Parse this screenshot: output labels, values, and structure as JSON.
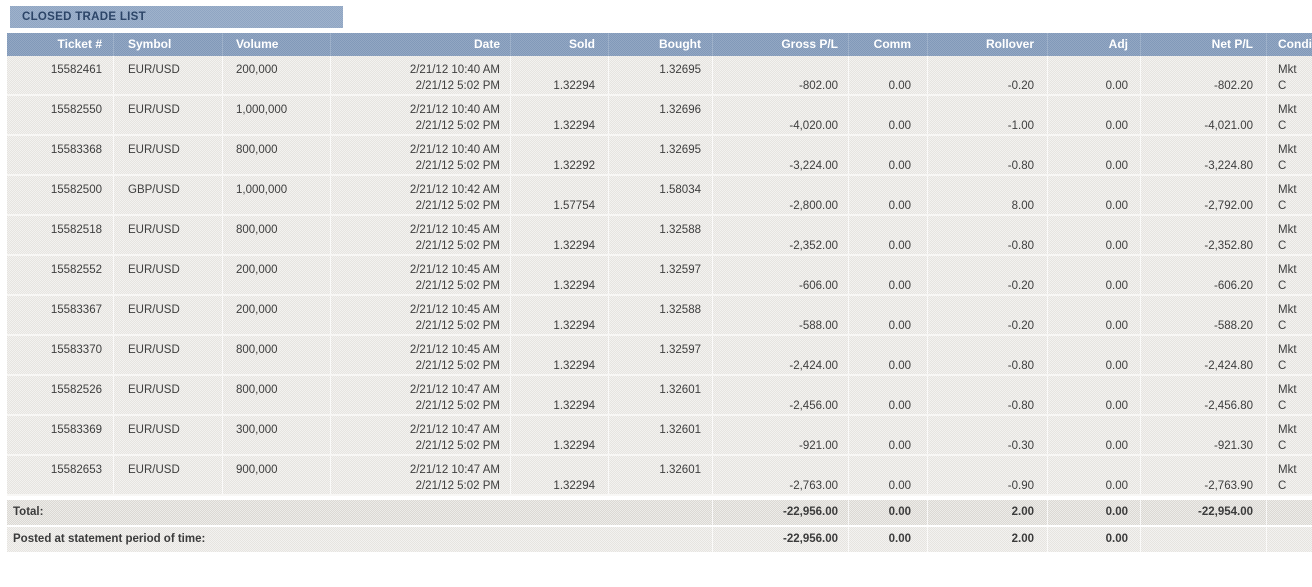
{
  "panel": {
    "title": "CLOSED TRADE LIST"
  },
  "table": {
    "columns": {
      "ticket": "Ticket #",
      "symbol": "Symbol",
      "volume": "Volume",
      "date": "Date",
      "sold": "Sold",
      "bought": "Bought",
      "gross": "Gross P/L",
      "comm": "Comm",
      "rollover": "Rollover",
      "adj": "Adj",
      "net": "Net P/L",
      "cond": "Condi"
    },
    "rows": [
      {
        "ticket": "15582461",
        "symbol": "EUR/USD",
        "volume": "200,000",
        "date_open": "2/21/12 10:40 AM",
        "date_close": "2/21/12 5:02 PM",
        "sold": "1.32294",
        "bought": "1.32695",
        "gross": "-802.00",
        "comm": "0.00",
        "rollover": "-0.20",
        "adj": "0.00",
        "net": "-802.20",
        "cond_open": "Mkt",
        "cond_close": "C"
      },
      {
        "ticket": "15582550",
        "symbol": "EUR/USD",
        "volume": "1,000,000",
        "date_open": "2/21/12 10:40 AM",
        "date_close": "2/21/12 5:02 PM",
        "sold": "1.32294",
        "bought": "1.32696",
        "gross": "-4,020.00",
        "comm": "0.00",
        "rollover": "-1.00",
        "adj": "0.00",
        "net": "-4,021.00",
        "cond_open": "Mkt",
        "cond_close": "C"
      },
      {
        "ticket": "15583368",
        "symbol": "EUR/USD",
        "volume": "800,000",
        "date_open": "2/21/12 10:40 AM",
        "date_close": "2/21/12 5:02 PM",
        "sold": "1.32292",
        "bought": "1.32695",
        "gross": "-3,224.00",
        "comm": "0.00",
        "rollover": "-0.80",
        "adj": "0.00",
        "net": "-3,224.80",
        "cond_open": "Mkt",
        "cond_close": "C"
      },
      {
        "ticket": "15582500",
        "symbol": "GBP/USD",
        "volume": "1,000,000",
        "date_open": "2/21/12 10:42 AM",
        "date_close": "2/21/12 5:02 PM",
        "sold": "1.57754",
        "bought": "1.58034",
        "gross": "-2,800.00",
        "comm": "0.00",
        "rollover": "8.00",
        "adj": "0.00",
        "net": "-2,792.00",
        "cond_open": "Mkt",
        "cond_close": "C"
      },
      {
        "ticket": "15582518",
        "symbol": "EUR/USD",
        "volume": "800,000",
        "date_open": "2/21/12 10:45 AM",
        "date_close": "2/21/12 5:02 PM",
        "sold": "1.32294",
        "bought": "1.32588",
        "gross": "-2,352.00",
        "comm": "0.00",
        "rollover": "-0.80",
        "adj": "0.00",
        "net": "-2,352.80",
        "cond_open": "Mkt",
        "cond_close": "C"
      },
      {
        "ticket": "15582552",
        "symbol": "EUR/USD",
        "volume": "200,000",
        "date_open": "2/21/12 10:45 AM",
        "date_close": "2/21/12 5:02 PM",
        "sold": "1.32294",
        "bought": "1.32597",
        "gross": "-606.00",
        "comm": "0.00",
        "rollover": "-0.20",
        "adj": "0.00",
        "net": "-606.20",
        "cond_open": "Mkt",
        "cond_close": "C"
      },
      {
        "ticket": "15583367",
        "symbol": "EUR/USD",
        "volume": "200,000",
        "date_open": "2/21/12 10:45 AM",
        "date_close": "2/21/12 5:02 PM",
        "sold": "1.32294",
        "bought": "1.32588",
        "gross": "-588.00",
        "comm": "0.00",
        "rollover": "-0.20",
        "adj": "0.00",
        "net": "-588.20",
        "cond_open": "Mkt",
        "cond_close": "C"
      },
      {
        "ticket": "15583370",
        "symbol": "EUR/USD",
        "volume": "800,000",
        "date_open": "2/21/12 10:45 AM",
        "date_close": "2/21/12 5:02 PM",
        "sold": "1.32294",
        "bought": "1.32597",
        "gross": "-2,424.00",
        "comm": "0.00",
        "rollover": "-0.80",
        "adj": "0.00",
        "net": "-2,424.80",
        "cond_open": "Mkt",
        "cond_close": "C"
      },
      {
        "ticket": "15582526",
        "symbol": "EUR/USD",
        "volume": "800,000",
        "date_open": "2/21/12 10:47 AM",
        "date_close": "2/21/12 5:02 PM",
        "sold": "1.32294",
        "bought": "1.32601",
        "gross": "-2,456.00",
        "comm": "0.00",
        "rollover": "-0.80",
        "adj": "0.00",
        "net": "-2,456.80",
        "cond_open": "Mkt",
        "cond_close": "C"
      },
      {
        "ticket": "15583369",
        "symbol": "EUR/USD",
        "volume": "300,000",
        "date_open": "2/21/12 10:47 AM",
        "date_close": "2/21/12 5:02 PM",
        "sold": "1.32294",
        "bought": "1.32601",
        "gross": "-921.00",
        "comm": "0.00",
        "rollover": "-0.30",
        "adj": "0.00",
        "net": "-921.30",
        "cond_open": "Mkt",
        "cond_close": "C"
      },
      {
        "ticket": "15582653",
        "symbol": "EUR/USD",
        "volume": "900,000",
        "date_open": "2/21/12 10:47 AM",
        "date_close": "2/21/12 5:02 PM",
        "sold": "1.32294",
        "bought": "1.32601",
        "gross": "-2,763.00",
        "comm": "0.00",
        "rollover": "-0.90",
        "adj": "0.00",
        "net": "-2,763.90",
        "cond_open": "Mkt",
        "cond_close": "C"
      }
    ],
    "total": {
      "label": "Total:",
      "gross": "-22,956.00",
      "comm": "0.00",
      "rollover": "2.00",
      "adj": "0.00",
      "net": "-22,954.00"
    },
    "posted": {
      "label": "Posted at statement period of time:",
      "gross": "-22,956.00",
      "comm": "0.00",
      "rollover": "2.00",
      "adj": "0.00",
      "net": ""
    }
  },
  "colors": {
    "tab_bg": "#8FA5C3",
    "tab_text": "#2C4568",
    "header_bg": "#8199B9",
    "header_text": "#FFFFFF",
    "row_bg": "#E6E4E0",
    "row_text": "#3D3D3D",
    "total_bg": "#DBD8D3"
  }
}
